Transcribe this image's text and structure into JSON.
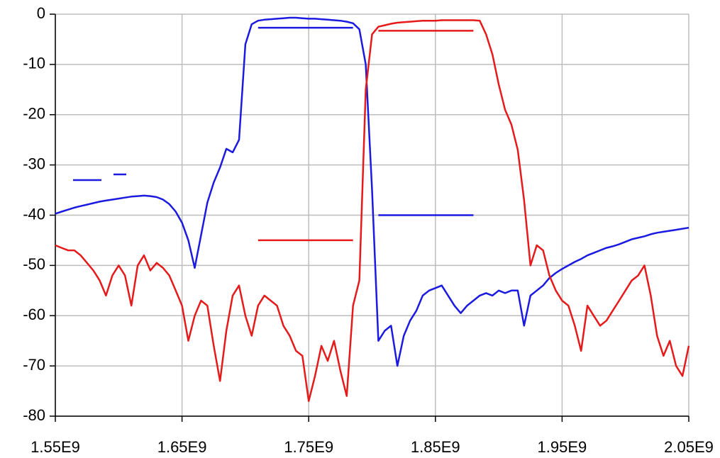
{
  "chart_data": {
    "type": "line",
    "x": [
      1550000000.0,
      1555000000.0,
      1560000000.0,
      1565000000.0,
      1570000000.0,
      1575000000.0,
      1580000000.0,
      1585000000.0,
      1590000000.0,
      1595000000.0,
      1600000000.0,
      1605000000.0,
      1610000000.0,
      1615000000.0,
      1620000000.0,
      1625000000.0,
      1630000000.0,
      1635000000.0,
      1640000000.0,
      1645000000.0,
      1650000000.0,
      1655000000.0,
      1660000000.0,
      1665000000.0,
      1670000000.0,
      1675000000.0,
      1680000000.0,
      1685000000.0,
      1690000000.0,
      1695000000.0,
      1700000000.0,
      1705000000.0,
      1710000000.0,
      1715000000.0,
      1720000000.0,
      1725000000.0,
      1730000000.0,
      1735000000.0,
      1740000000.0,
      1745000000.0,
      1750000000.0,
      1755000000.0,
      1760000000.0,
      1765000000.0,
      1770000000.0,
      1775000000.0,
      1780000000.0,
      1785000000.0,
      1790000000.0,
      1795000000.0,
      1800000000.0,
      1805000000.0,
      1810000000.0,
      1815000000.0,
      1820000000.0,
      1825000000.0,
      1830000000.0,
      1835000000.0,
      1840000000.0,
      1845000000.0,
      1850000000.0,
      1855000000.0,
      1860000000.0,
      1865000000.0,
      1870000000.0,
      1875000000.0,
      1880000000.0,
      1885000000.0,
      1890000000.0,
      1895000000.0,
      1900000000.0,
      1905000000.0,
      1910000000.0,
      1915000000.0,
      1920000000.0,
      1925000000.0,
      1930000000.0,
      1935000000.0,
      1940000000.0,
      1945000000.0,
      1950000000.0,
      1955000000.0,
      1960000000.0,
      1965000000.0,
      1970000000.0,
      1975000000.0,
      1980000000.0,
      1985000000.0,
      1990000000.0,
      1995000000.0,
      2000000000.0,
      2005000000.0,
      2010000000.0,
      2015000000.0,
      2020000000.0,
      2025000000.0,
      2030000000.0,
      2035000000.0,
      2040000000.0,
      2045000000.0,
      2050000000.0
    ],
    "series": [
      {
        "color": "#1a1ae0",
        "values": [
          -39.7,
          -39.3,
          -38.9,
          -38.5,
          -38.2,
          -37.9,
          -37.6,
          -37.3,
          -37.1,
          -36.9,
          -36.7,
          -36.5,
          -36.3,
          -36.2,
          -36.1,
          -36.2,
          -36.4,
          -36.9,
          -37.8,
          -39.3,
          -41.5,
          -45,
          -50.5,
          -44,
          -37.5,
          -33.5,
          -30.5,
          -26.8,
          -27.5,
          -25,
          -6,
          -2,
          -1.3,
          -1.1,
          -1,
          -0.9,
          -0.8,
          -0.7,
          -0.7,
          -0.8,
          -0.9,
          -0.9,
          -1,
          -1.1,
          -1.2,
          -1.3,
          -1.5,
          -1.8,
          -3,
          -10,
          -35,
          -65,
          -63,
          -62,
          -70,
          -64,
          -61,
          -59,
          -56,
          -55,
          -54.5,
          -54,
          -56,
          -58,
          -59.5,
          -58,
          -57,
          -56,
          -55.5,
          -56,
          -55,
          -55.5,
          -55,
          -55,
          -62,
          -56,
          -55,
          -54,
          -52.5,
          -51.5,
          -50.7,
          -50,
          -49.3,
          -48.7,
          -48,
          -47.5,
          -47,
          -46.5,
          -46.2,
          -45.8,
          -45.3,
          -44.8,
          -44.5,
          -44.2,
          -43.8,
          -43.5,
          -43.3,
          -43.1,
          -42.9,
          -42.7,
          -42.5
        ]
      },
      {
        "color": "#e61a1a",
        "values": [
          -46,
          -46.5,
          -47,
          -47,
          -48,
          -49.5,
          -51,
          -53,
          -56,
          -52,
          -50,
          -52,
          -58,
          -50,
          -48,
          -51,
          -49.5,
          -50.5,
          -52,
          -55,
          -58,
          -65,
          -60,
          -57,
          -58,
          -66,
          -73,
          -63,
          -56,
          -54,
          -60,
          -64,
          -58,
          -56,
          -57,
          -58,
          -62,
          -64,
          -67,
          -68,
          -77,
          -72,
          -66,
          -69,
          -65,
          -71,
          -76,
          -58,
          -53,
          -15,
          -4,
          -2.5,
          -2.2,
          -1.9,
          -1.7,
          -1.6,
          -1.5,
          -1.4,
          -1.3,
          -1.3,
          -1.3,
          -1.2,
          -1.2,
          -1.2,
          -1.2,
          -1.2,
          -1.2,
          -1.3,
          -4,
          -8,
          -14,
          -19,
          -22,
          -27,
          -37,
          -50,
          -46,
          -47,
          -52,
          -55,
          -57,
          -58,
          -62,
          -67,
          -58,
          -60,
          -62,
          -61,
          -59,
          -57,
          -55,
          -53,
          -52,
          -50,
          -56,
          -64,
          -68,
          -65,
          -70,
          -72,
          -66
        ]
      }
    ],
    "masks": [
      {
        "color": "#1a1ae0",
        "x": [
          1710000000.0,
          1785000000.0
        ],
        "values": [
          -2.7,
          -2.7
        ]
      },
      {
        "color": "#1a1ae0",
        "x": [
          1805000000.0,
          1880000000.0
        ],
        "values": [
          -40,
          -40
        ]
      },
      {
        "color": "#e61a1a",
        "x": [
          1805000000.0,
          1880000000.0
        ],
        "values": [
          -3.3,
          -3.3
        ]
      },
      {
        "color": "#e61a1a",
        "x": [
          1710000000.0,
          1785000000.0
        ],
        "values": [
          -45,
          -45
        ]
      }
    ],
    "xlim": [
      1550000000.0,
      2050000000.0
    ],
    "xticks": [
      {
        "value": 1550000000.0,
        "label": "1.55E9"
      },
      {
        "value": 1650000000.0,
        "label": "1.65E9"
      },
      {
        "value": 1750000000.0,
        "label": "1.75E9"
      },
      {
        "value": 1850000000.0,
        "label": "1.85E9"
      },
      {
        "value": 1950000000.0,
        "label": "1.95E9"
      },
      {
        "value": 2050000000.0,
        "label": "2.05E9"
      }
    ],
    "ylim": [
      -80,
      0
    ],
    "yticks": [
      -80,
      -70,
      -60,
      -50,
      -40,
      -30,
      -20,
      -10,
      0
    ],
    "grid": true
  }
}
